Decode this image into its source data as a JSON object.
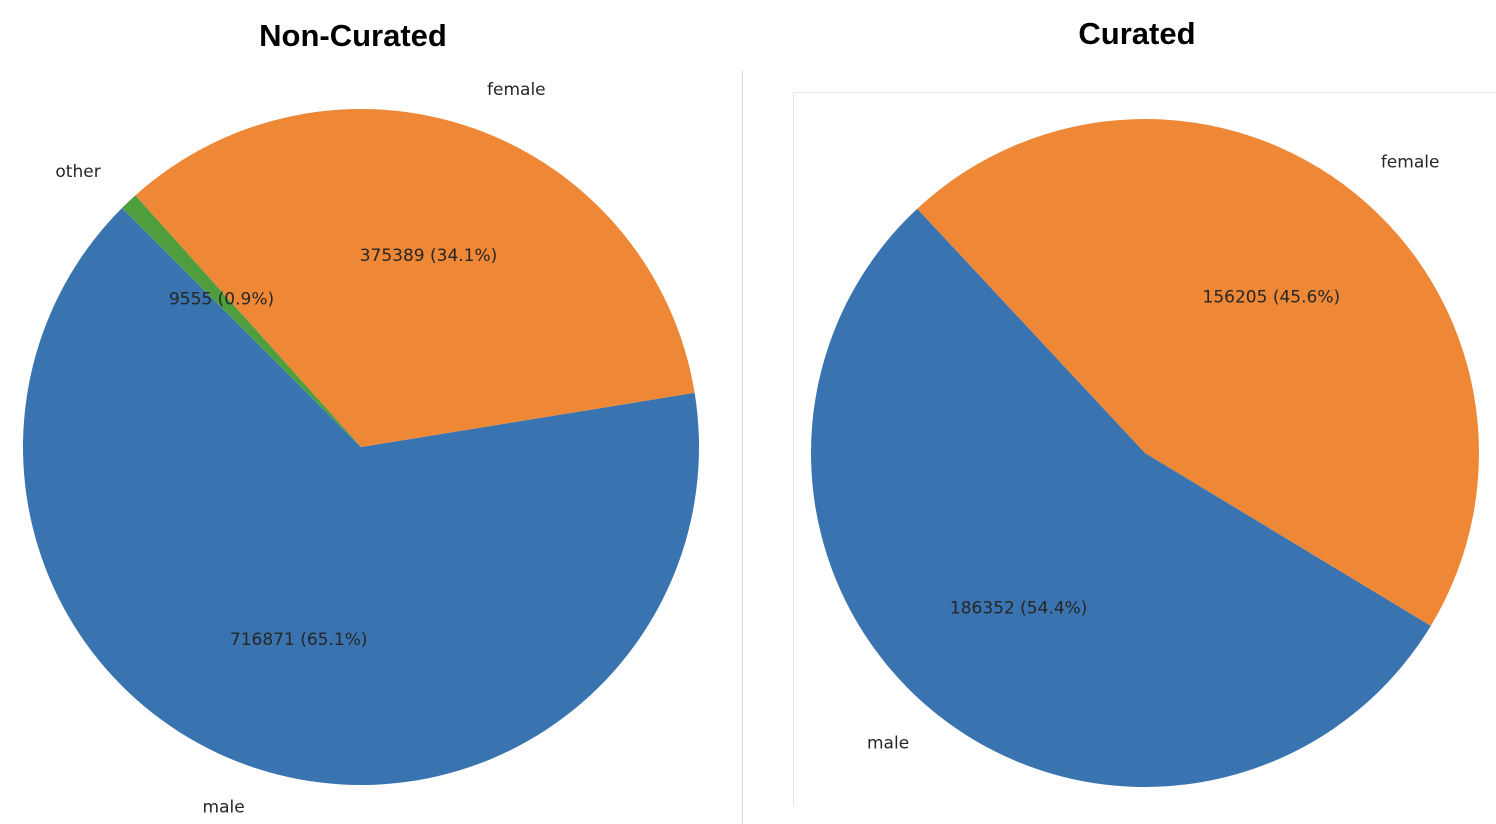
{
  "chart_data": [
    {
      "type": "pie",
      "title": "Non-Curated",
      "labels": [
        "male",
        "female",
        "other"
      ],
      "values": [
        716871,
        375389,
        9555
      ],
      "percentages": [
        "65.1%",
        "34.1%",
        "0.9%"
      ],
      "autopct_labels": [
        "716871 (65.1%)",
        "375389 (34.1%)",
        "9555 (0.9%)"
      ],
      "colors": [
        "#3a74b0",
        "#ee8836",
        "#4f9e3e"
      ],
      "start_angle_deg": 135,
      "counterclock": true
    },
    {
      "type": "pie",
      "title": "Curated",
      "labels": [
        "male",
        "female"
      ],
      "values": [
        186352,
        156205
      ],
      "percentages": [
        "54.4%",
        "45.6%"
      ],
      "autopct_labels": [
        "186352 (54.4%)",
        "156205 (45.6%)"
      ],
      "colors": [
        "#3a74b0",
        "#ee8836"
      ],
      "start_angle_deg": 133,
      "counterclock": true
    }
  ]
}
